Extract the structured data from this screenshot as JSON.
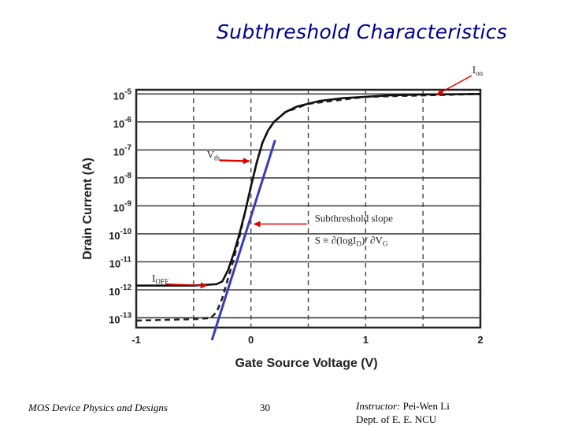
{
  "slide": {
    "title": "Subthreshold Characteristics",
    "footer_left": "MOS Device Physics and Designs",
    "page_number": "30",
    "instructor_label": "Instructor:",
    "instructor_name": "Pei-Wen Li",
    "department": "Dept. of E. E. NCU"
  },
  "chart_data": {
    "type": "line",
    "xlabel": "Gate Source Voltage (V)",
    "ylabel": "Drain Current (A)",
    "xlim": [
      -1,
      2
    ],
    "ylim_log10": [
      -13.5,
      -4.9
    ],
    "x_ticks": [
      "-1",
      "0",
      "1",
      "2"
    ],
    "y_ticks": [
      {
        "base": "10",
        "exp": "-5",
        "log": -5
      },
      {
        "base": "10",
        "exp": "-6",
        "log": -6
      },
      {
        "base": "10",
        "exp": "-7",
        "log": -7
      },
      {
        "base": "10",
        "exp": "-8",
        "log": -8
      },
      {
        "base": "10",
        "exp": "-9",
        "log": -9
      },
      {
        "base": "10",
        "exp": "-10",
        "log": -10
      },
      {
        "base": "10",
        "exp": "-11",
        "log": -11
      },
      {
        "base": "10",
        "exp": "-12",
        "log": -12
      },
      {
        "base": "10",
        "exp": "-13",
        "log": -13
      }
    ],
    "grid": true,
    "series": [
      {
        "name": "solid",
        "x": [
          -1.0,
          -0.5,
          -0.3,
          -0.25,
          -0.2,
          -0.15,
          -0.1,
          -0.05,
          0.0,
          0.05,
          0.1,
          0.15,
          0.2,
          0.3,
          0.4,
          0.6,
          0.8,
          1.0,
          1.2,
          1.5,
          2.0
        ],
        "log10_y": [
          -11.85,
          -11.85,
          -11.8,
          -11.7,
          -11.3,
          -10.7,
          -10.0,
          -9.2,
          -8.3,
          -7.45,
          -6.75,
          -6.3,
          -6.0,
          -5.65,
          -5.45,
          -5.25,
          -5.15,
          -5.1,
          -5.05,
          -5.02,
          -5.0
        ]
      },
      {
        "name": "dashed",
        "x": [
          -1.0,
          -0.5,
          -0.35,
          -0.3,
          -0.25,
          -0.2,
          -0.15,
          -0.1,
          -0.05,
          0.0,
          0.05,
          0.1,
          0.15,
          0.2,
          0.3,
          0.5,
          1.0,
          2.0
        ],
        "log10_y": [
          -13.1,
          -13.05,
          -13.0,
          -12.8,
          -12.3,
          -11.6,
          -10.9,
          -10.1,
          -9.2,
          -8.3,
          -7.45,
          -6.75,
          -6.3,
          -6.0,
          -5.65,
          -5.35,
          -5.1,
          -5.0
        ]
      },
      {
        "name": "subthreshold-slope-fit",
        "x": [
          -0.34,
          0.21
        ],
        "log10_y": [
          -13.8,
          -6.65
        ]
      }
    ],
    "annotations": {
      "ion": {
        "base": "I",
        "sub": "on",
        "x": 1.6,
        "log10_y": -5.05
      },
      "vth": {
        "base": "V",
        "sub": "th",
        "x": 0.0,
        "log10_y": -7.4
      },
      "slope": {
        "line1": "Subthreshold slope",
        "line2_a": "S ≡ ∂(logI",
        "line2_sub": "D",
        "line2_b": ")/ ∂V",
        "line2_sub2": "G",
        "x": 0.02,
        "log10_y": -9.65
      },
      "ioff": {
        "base": "I",
        "sub": "OFF",
        "x": -0.35,
        "log10_y": -11.85
      }
    }
  }
}
